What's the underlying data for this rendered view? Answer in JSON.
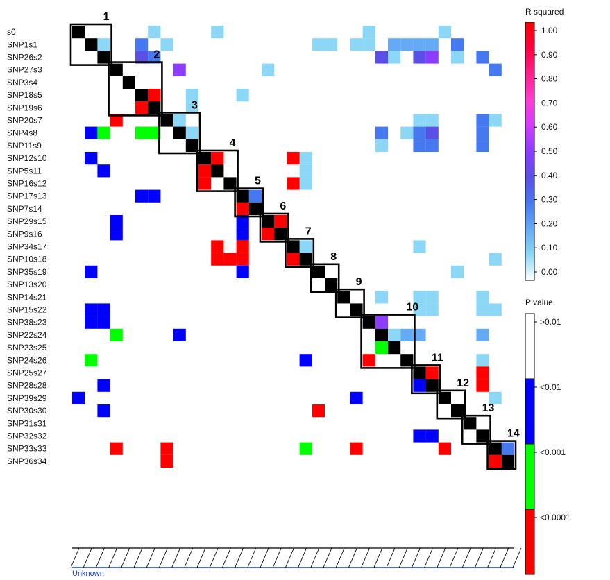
{
  "chart_data": {
    "type": "heatmap",
    "markers": [
      "s0",
      "SNP1s1",
      "SNP26s2",
      "SNP27s3",
      "SNP3s4",
      "SNP18s5",
      "SNP19s6",
      "SNP20s7",
      "SNP4s8",
      "SNP11s9",
      "SNP12s10",
      "SNP5s11",
      "SNP16s12",
      "SNP17s13",
      "SNP7s14",
      "SNP29s15",
      "SNP9s16",
      "SNP34s17",
      "SNP10s18",
      "SNP35s19",
      "SNP13s20",
      "SNP14s21",
      "SNP15s22",
      "SNP38s23",
      "SNP22s24",
      "SNP23s25",
      "SNP24s26",
      "SNP25s27",
      "SNP28s28",
      "SNP39s29",
      "SNP30s30",
      "SNP31s31",
      "SNP32s32",
      "SNP33s33",
      "SNP36s34"
    ],
    "bottom_label": "Unknown",
    "blocks": [
      {
        "label": "1",
        "start": 0,
        "end": 3
      },
      {
        "label": "2",
        "start": 3,
        "end": 7
      },
      {
        "label": "3",
        "start": 7,
        "end": 10
      },
      {
        "label": "4",
        "start": 10,
        "end": 13
      },
      {
        "label": "5",
        "start": 13,
        "end": 15
      },
      {
        "label": "6",
        "start": 15,
        "end": 17
      },
      {
        "label": "7",
        "start": 17,
        "end": 19
      },
      {
        "label": "8",
        "start": 19,
        "end": 21
      },
      {
        "label": "9",
        "start": 21,
        "end": 23
      },
      {
        "label": "10",
        "start": 23,
        "end": 27
      },
      {
        "label": "11",
        "start": 27,
        "end": 29
      },
      {
        "label": "12",
        "start": 29,
        "end": 31
      },
      {
        "label": "13",
        "start": 31,
        "end": 33
      },
      {
        "label": "14",
        "start": 33,
        "end": 35
      }
    ],
    "r_squared_legend": {
      "title": "R squared",
      "ticks": [
        "1.00",
        "0.90",
        "0.80",
        "0.70",
        "0.60",
        "0.50",
        "0.40",
        "0.30",
        "0.20",
        "0.10",
        "0.00"
      ],
      "colors": [
        "#ff0000",
        "#ff0040",
        "#ff1e8c",
        "#ff3cd2",
        "#d23cff",
        "#8c3cff",
        "#5a50e6",
        "#4678f0",
        "#64aaf5",
        "#8cd7f5",
        "#ffffff"
      ]
    },
    "p_value_legend": {
      "title": "P value",
      "bands": [
        {
          "label": ">0.01",
          "color": "#ffffff"
        },
        {
          "label": "<0.01",
          "color": "#0000ff"
        },
        {
          "label": "<0.001",
          "color": "#00ff00"
        },
        {
          "label": "<0.0001",
          "color": "#ff0000"
        }
      ]
    },
    "upper_r2_cells": [
      [
        0,
        6,
        0.1
      ],
      [
        0,
        11,
        0.1
      ],
      [
        0,
        23,
        0.1
      ],
      [
        0,
        29,
        0.1
      ],
      [
        1,
        5,
        0.25
      ],
      [
        1,
        7,
        0.1
      ],
      [
        1,
        19,
        0.1
      ],
      [
        1,
        20,
        0.1
      ],
      [
        1,
        22,
        0.1
      ],
      [
        1,
        23,
        0.1
      ],
      [
        1,
        25,
        0.2
      ],
      [
        1,
        26,
        0.2
      ],
      [
        1,
        27,
        0.2
      ],
      [
        1,
        28,
        0.2
      ],
      [
        1,
        30,
        0.25
      ],
      [
        2,
        5,
        0.4
      ],
      [
        2,
        6,
        0.3
      ],
      [
        2,
        24,
        0.4
      ],
      [
        2,
        25,
        0.1
      ],
      [
        2,
        27,
        0.4
      ],
      [
        2,
        28,
        0.5
      ],
      [
        2,
        30,
        0.1
      ],
      [
        2,
        32,
        0.3
      ],
      [
        3,
        8,
        0.45
      ],
      [
        3,
        15,
        0.1
      ],
      [
        3,
        33,
        0.3
      ],
      [
        5,
        9,
        0.1
      ],
      [
        5,
        13,
        0.1
      ],
      [
        6,
        9,
        0.1
      ],
      [
        7,
        27,
        0.1
      ],
      [
        7,
        28,
        0.1
      ],
      [
        7,
        32,
        0.25
      ],
      [
        7,
        33,
        0.1
      ],
      [
        8,
        24,
        0.3
      ],
      [
        8,
        26,
        0.1
      ],
      [
        8,
        27,
        0.3
      ],
      [
        8,
        28,
        0.4
      ],
      [
        8,
        32,
        0.25
      ],
      [
        9,
        24,
        0.1
      ],
      [
        9,
        27,
        0.25
      ],
      [
        9,
        28,
        0.25
      ],
      [
        9,
        32,
        0.25
      ],
      [
        10,
        18,
        0.1
      ],
      [
        11,
        18,
        0.1
      ],
      [
        12,
        18,
        0.1
      ],
      [
        17,
        27,
        0.1
      ],
      [
        18,
        33,
        0.1
      ],
      [
        19,
        30,
        0.1
      ],
      [
        21,
        24,
        0.1
      ],
      [
        21,
        27,
        0.1
      ],
      [
        21,
        28,
        0.1
      ],
      [
        21,
        32,
        0.1
      ],
      [
        22,
        27,
        0.1
      ],
      [
        22,
        28,
        0.1
      ],
      [
        22,
        32,
        0.1
      ],
      [
        22,
        33,
        0.1
      ],
      [
        24,
        26,
        0.2
      ],
      [
        24,
        27,
        0.2
      ],
      [
        24,
        32,
        0.2
      ],
      [
        26,
        32,
        0.1
      ],
      [
        29,
        33,
        0.1
      ]
    ],
    "lower_p_cells": [
      [
        7,
        3,
        "<0.0001"
      ],
      [
        8,
        1,
        "<0.01"
      ],
      [
        8,
        2,
        "<0.001"
      ],
      [
        8,
        5,
        "<0.001"
      ],
      [
        8,
        6,
        "<0.001"
      ],
      [
        10,
        1,
        "<0.01"
      ],
      [
        10,
        17,
        "<0.0001"
      ],
      [
        11,
        2,
        "<0.01"
      ],
      [
        12,
        17,
        "<0.0001"
      ],
      [
        13,
        5,
        "<0.01"
      ],
      [
        13,
        6,
        "<0.01"
      ],
      [
        15,
        3,
        "<0.01"
      ],
      [
        15,
        13,
        "<0.01"
      ],
      [
        16,
        3,
        "<0.01"
      ],
      [
        16,
        13,
        "<0.01"
      ],
      [
        17,
        11,
        "<0.0001"
      ],
      [
        17,
        13,
        "<0.0001"
      ],
      [
        18,
        11,
        "<0.0001"
      ],
      [
        18,
        12,
        "<0.0001"
      ],
      [
        18,
        13,
        "<0.0001"
      ],
      [
        19,
        1,
        "<0.01"
      ],
      [
        19,
        13,
        "<0.01"
      ],
      [
        22,
        1,
        "<0.01"
      ],
      [
        22,
        2,
        "<0.01"
      ],
      [
        23,
        1,
        "<0.01"
      ],
      [
        23,
        2,
        "<0.01"
      ],
      [
        24,
        3,
        "<0.001"
      ],
      [
        24,
        8,
        "<0.01"
      ],
      [
        26,
        1,
        "<0.001"
      ],
      [
        26,
        18,
        "<0.01"
      ],
      [
        27,
        32,
        "<0.0001"
      ],
      [
        28,
        2,
        "<0.01"
      ],
      [
        28,
        32,
        "<0.0001"
      ],
      [
        29,
        0,
        "<0.01"
      ],
      [
        29,
        22,
        "<0.01"
      ],
      [
        30,
        2,
        "<0.01"
      ],
      [
        30,
        19,
        "<0.0001"
      ],
      [
        32,
        27,
        "<0.01"
      ],
      [
        32,
        28,
        "<0.01"
      ],
      [
        33,
        3,
        "<0.0001"
      ],
      [
        33,
        7,
        "<0.0001"
      ],
      [
        33,
        18,
        "<0.001"
      ],
      [
        33,
        22,
        "<0.0001"
      ],
      [
        33,
        29,
        "<0.0001"
      ],
      [
        34,
        7,
        "<0.0001"
      ]
    ],
    "inner_block_cells": [
      [
        1,
        2,
        0.1
      ],
      [
        5,
        6,
        "<0.0001"
      ],
      [
        6,
        5,
        "<0.0001"
      ],
      [
        7,
        8,
        0.1
      ],
      [
        8,
        9,
        0.1
      ],
      [
        10,
        11,
        "<0.0001"
      ],
      [
        11,
        10,
        "<0.0001"
      ],
      [
        12,
        10,
        "<0.0001"
      ],
      [
        13,
        14,
        0.3
      ],
      [
        14,
        13,
        "<0.0001"
      ],
      [
        15,
        16,
        "<0.0001"
      ],
      [
        16,
        15,
        "<0.0001"
      ],
      [
        17,
        18,
        0.1
      ],
      [
        18,
        17,
        "<0.0001"
      ],
      [
        23,
        24,
        0.5
      ],
      [
        24,
        25,
        0.1
      ],
      [
        25,
        24,
        "<0.001"
      ],
      [
        26,
        23,
        "<0.0001"
      ],
      [
        27,
        28,
        "<0.0001"
      ],
      [
        28,
        27,
        "<0.01"
      ],
      [
        33,
        34,
        0.25
      ],
      [
        34,
        33,
        "<0.0001"
      ]
    ]
  }
}
